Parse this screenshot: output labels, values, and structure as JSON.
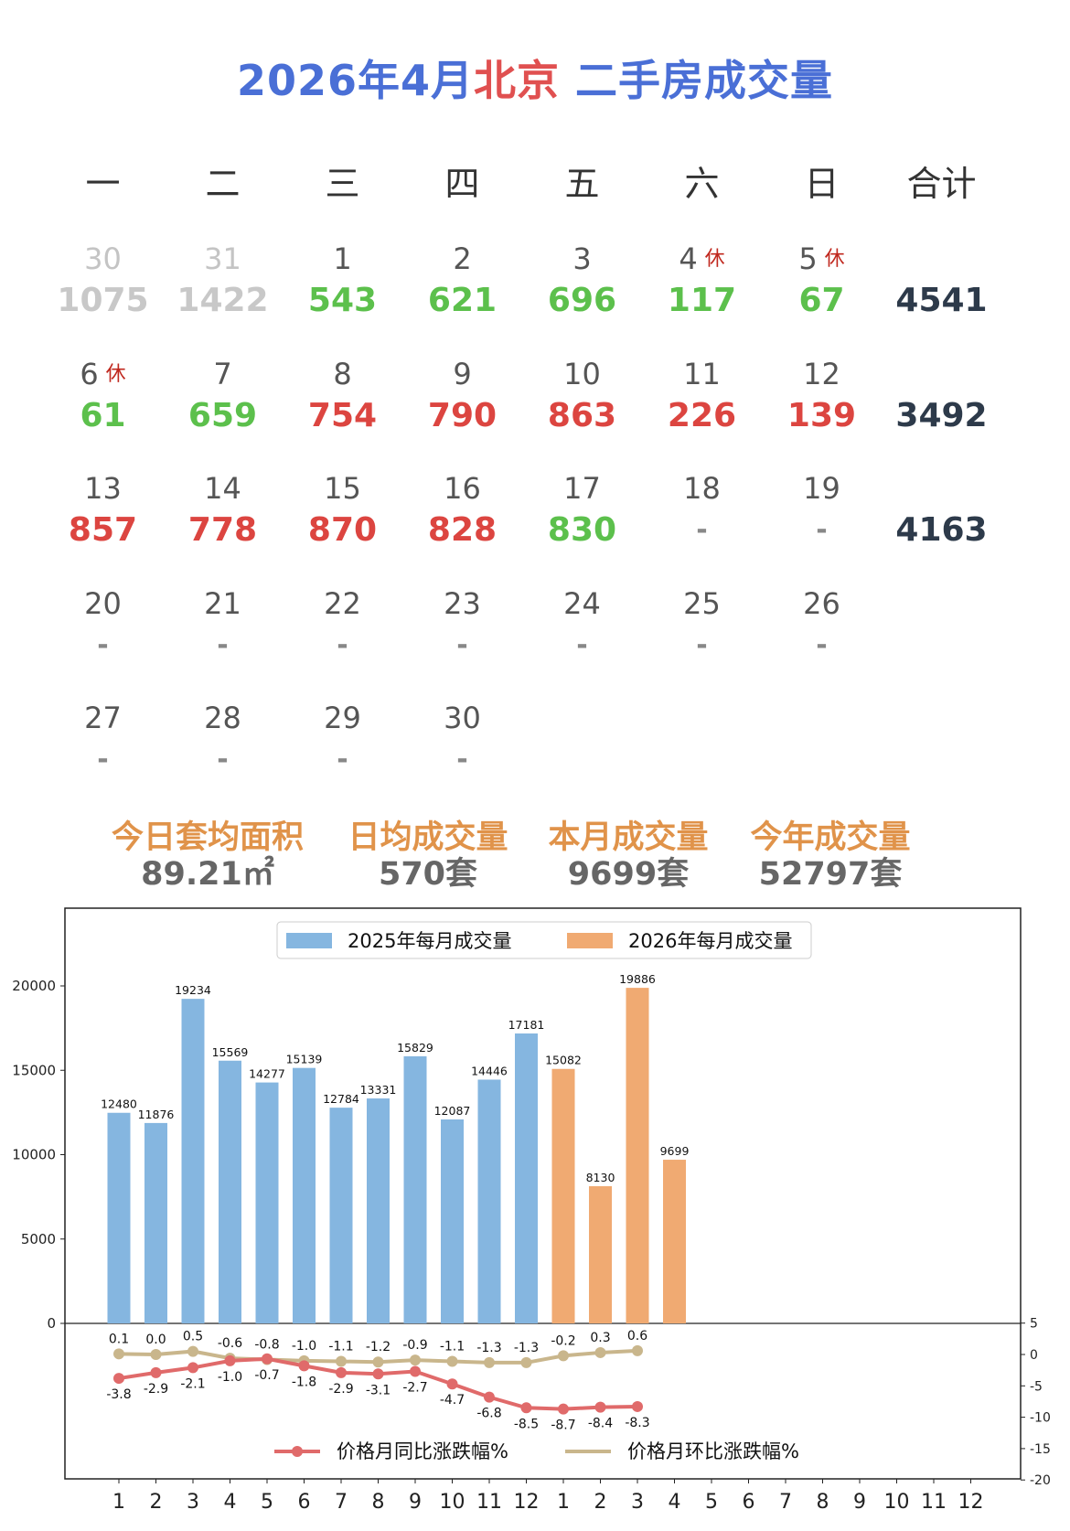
{
  "title": {
    "prefix": "2026年4月",
    "city": "北京",
    "suffix": " 二手房成交量"
  },
  "weekdays": [
    "一",
    "二",
    "三",
    "四",
    "五",
    "六",
    "日",
    "合计"
  ],
  "rest_label": "休",
  "weeks": [
    {
      "days": [
        {
          "day": "30",
          "value": "1075",
          "style": "prev",
          "prev": true
        },
        {
          "day": "31",
          "value": "1422",
          "style": "prev",
          "prev": true
        },
        {
          "day": "1",
          "value": "543",
          "style": "green"
        },
        {
          "day": "2",
          "value": "621",
          "style": "green"
        },
        {
          "day": "3",
          "value": "696",
          "style": "green"
        },
        {
          "day": "4",
          "value": "117",
          "style": "green",
          "rest": true
        },
        {
          "day": "5",
          "value": "67",
          "style": "green",
          "rest": true
        }
      ],
      "total": "4541"
    },
    {
      "days": [
        {
          "day": "6",
          "value": "61",
          "style": "green",
          "rest": true
        },
        {
          "day": "7",
          "value": "659",
          "style": "green"
        },
        {
          "day": "8",
          "value": "754",
          "style": "red"
        },
        {
          "day": "9",
          "value": "790",
          "style": "red"
        },
        {
          "day": "10",
          "value": "863",
          "style": "red"
        },
        {
          "day": "11",
          "value": "226",
          "style": "red"
        },
        {
          "day": "12",
          "value": "139",
          "style": "red"
        }
      ],
      "total": "3492"
    },
    {
      "days": [
        {
          "day": "13",
          "value": "857",
          "style": "red"
        },
        {
          "day": "14",
          "value": "778",
          "style": "red"
        },
        {
          "day": "15",
          "value": "870",
          "style": "red"
        },
        {
          "day": "16",
          "value": "828",
          "style": "red"
        },
        {
          "day": "17",
          "value": "830",
          "style": "green",
          "today": true
        },
        {
          "day": "18",
          "value": "-",
          "style": "dash"
        },
        {
          "day": "19",
          "value": "-",
          "style": "dash"
        }
      ],
      "total": "4163"
    },
    {
      "days": [
        {
          "day": "20",
          "value": "-",
          "style": "dash"
        },
        {
          "day": "21",
          "value": "-",
          "style": "dash"
        },
        {
          "day": "22",
          "value": "-",
          "style": "dash"
        },
        {
          "day": "23",
          "value": "-",
          "style": "dash"
        },
        {
          "day": "24",
          "value": "-",
          "style": "dash"
        },
        {
          "day": "25",
          "value": "-",
          "style": "dash"
        },
        {
          "day": "26",
          "value": "-",
          "style": "dash"
        }
      ],
      "total": ""
    },
    {
      "days": [
        {
          "day": "27",
          "value": "-",
          "style": "dash"
        },
        {
          "day": "28",
          "value": "-",
          "style": "dash"
        },
        {
          "day": "29",
          "value": "-",
          "style": "dash"
        },
        {
          "day": "30",
          "value": "-",
          "style": "dash"
        }
      ],
      "total": ""
    }
  ],
  "stats": [
    {
      "label": "今日套均面积",
      "value": "89.21㎡"
    },
    {
      "label": "日均成交量",
      "value": "570套"
    },
    {
      "label": "本月成交量",
      "value": "9699套"
    },
    {
      "label": "今年成交量",
      "value": "52797套"
    }
  ],
  "colors": {
    "bar2025": "#85b6e0",
    "bar2026": "#f0aa72",
    "yoy": "#e06a6a",
    "mom": "#c9b68c"
  },
  "chart_data": {
    "type": "bar",
    "x_ticks": [
      "1",
      "2",
      "3",
      "4",
      "5",
      "6",
      "7",
      "8",
      "9",
      "10",
      "11",
      "12",
      "1",
      "2",
      "3",
      "4",
      "5",
      "6",
      "7",
      "8",
      "9",
      "10",
      "11",
      "12"
    ],
    "ylim": [
      0,
      24000
    ],
    "y_ticks": [
      "0",
      "5000",
      "10000",
      "15000",
      "20000"
    ],
    "legend_position": "top-center",
    "series": [
      {
        "name": "2025年每月成交量",
        "start": 0,
        "values": [
          12480,
          11876,
          19234,
          15569,
          14277,
          15139,
          12784,
          13331,
          15829,
          12087,
          14446,
          17181
        ]
      },
      {
        "name": "2026年每月成交量",
        "start": 12,
        "values": [
          15082,
          8130,
          19886,
          9699
        ]
      }
    ],
    "lines": {
      "type": "line",
      "ylim": [
        -20,
        5
      ],
      "y_ticks": [
        "5",
        "0",
        "-5",
        "-10",
        "-15",
        "-20"
      ],
      "legend_position": "bottom-center",
      "series": [
        {
          "name": "价格月同比涨跌幅%",
          "values": [
            -3.8,
            -2.9,
            -2.1,
            -1.0,
            -0.7,
            -1.8,
            -2.9,
            -3.1,
            -2.7,
            -4.7,
            -6.8,
            -8.5,
            -8.7,
            -8.4,
            -8.3
          ]
        },
        {
          "name": "价格月环比涨跌幅%",
          "values": [
            0.1,
            0.0,
            0.5,
            -0.6,
            -0.8,
            -1.0,
            -1.1,
            -1.2,
            -0.9,
            -1.1,
            -1.3,
            -1.3,
            -0.2,
            0.3,
            0.6
          ]
        }
      ]
    }
  }
}
